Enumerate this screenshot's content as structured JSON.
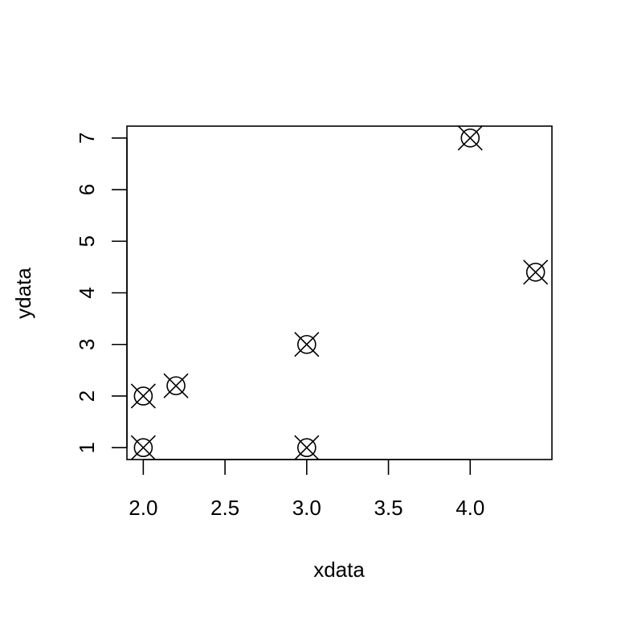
{
  "chart_data": {
    "type": "scatter",
    "title": "",
    "xlabel": "xdata",
    "ylabel": "ydata",
    "xlim": [
      1.9,
      4.5
    ],
    "ylim": [
      0.77,
      7.23
    ],
    "xticks": [
      2.0,
      2.5,
      3.0,
      3.5,
      4.0
    ],
    "xtick_labels": [
      "2.0",
      "2.5",
      "3.0",
      "3.5",
      "4.0"
    ],
    "yticks": [
      1,
      2,
      3,
      4,
      5,
      6,
      7
    ],
    "ytick_labels": [
      "1",
      "2",
      "3",
      "4",
      "5",
      "6",
      "7"
    ],
    "marker": "circle-x",
    "grid": false,
    "points": [
      {
        "x": 2.0,
        "y": 1.0
      },
      {
        "x": 2.0,
        "y": 2.0
      },
      {
        "x": 2.2,
        "y": 2.2
      },
      {
        "x": 3.0,
        "y": 3.0
      },
      {
        "x": 3.0,
        "y": 1.0
      },
      {
        "x": 4.0,
        "y": 7.0
      },
      {
        "x": 4.4,
        "y": 4.4
      }
    ]
  }
}
